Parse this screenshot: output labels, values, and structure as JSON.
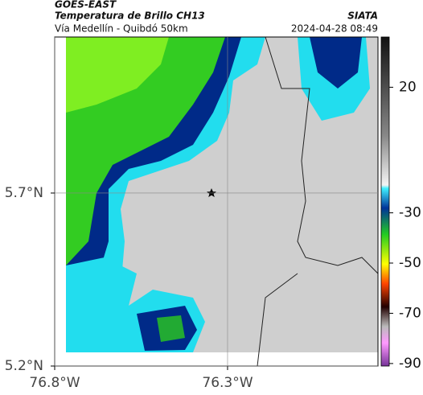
{
  "header": {
    "title": "GOES-EAST",
    "subtitle": "Temperatura de Brillo CH13",
    "source": "SIATA",
    "region": "Vía Medellín - Quibdó 50km",
    "timestamp": "2024-04-28 08:49"
  },
  "map": {
    "xlim": [
      -76.8,
      -75.865
    ],
    "ylim": [
      5.2,
      6.151
    ],
    "xticks": [
      {
        "value": -76.8,
        "label": "76.8°W"
      },
      {
        "value": -76.3,
        "label": "76.3°W"
      }
    ],
    "yticks": [
      {
        "value": 5.2,
        "label": "5.2°N"
      },
      {
        "value": 5.7,
        "label": "5.7°N"
      }
    ]
  },
  "colorbar": {
    "lim": [
      -91,
      40
    ],
    "ticks": [
      20,
      -30,
      -50,
      -70,
      -90
    ]
  }
}
